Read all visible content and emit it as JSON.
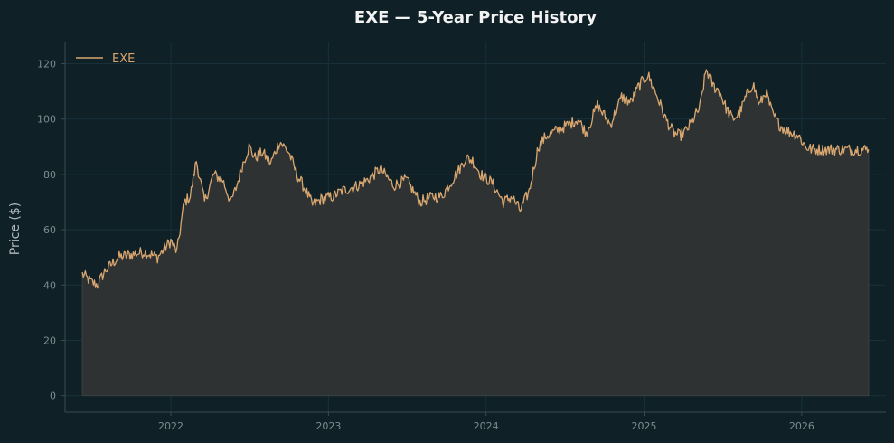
{
  "colors": {
    "background": "#0f2027",
    "plot_background": "#10222a",
    "line": "#d9a66f",
    "fill": "#2e3232",
    "axis": "#3a4a52",
    "grid": "#17303a",
    "title": "#f2f2f2",
    "tick_label": "#7f8c8d",
    "axis_label": "#b0b8bb",
    "legend_text": "#d9a66f"
  },
  "chart_data": {
    "type": "area",
    "title": "EXE — 5-Year Price History",
    "xlabel": "",
    "ylabel": "Price ($)",
    "xlim": [
      "2021-05-01",
      "2026-07-15"
    ],
    "ylim": [
      -6,
      128
    ],
    "x_ticks": [
      "2022",
      "2023",
      "2024",
      "2025",
      "2026"
    ],
    "y_ticks": [
      0,
      20,
      40,
      60,
      80,
      100,
      120
    ],
    "grid": true,
    "legend": "top-left",
    "series": [
      {
        "name": "EXE",
        "x": [
          "2021-06-10",
          "2021-07-01",
          "2021-07-15",
          "2021-08-01",
          "2021-09-01",
          "2021-10-01",
          "2021-11-01",
          "2021-12-01",
          "2022-01-01",
          "2022-01-15",
          "2022-02-01",
          "2022-02-15",
          "2022-03-01",
          "2022-03-20",
          "2022-04-10",
          "2022-05-01",
          "2022-05-20",
          "2022-06-01",
          "2022-06-15",
          "2022-07-01",
          "2022-07-15",
          "2022-08-01",
          "2022-08-20",
          "2022-09-10",
          "2022-10-01",
          "2022-10-20",
          "2022-11-10",
          "2022-11-25",
          "2022-12-15",
          "2023-01-10",
          "2023-02-01",
          "2023-02-20",
          "2023-03-10",
          "2023-04-01",
          "2023-05-01",
          "2023-06-01",
          "2023-07-01",
          "2023-08-01",
          "2023-09-01",
          "2023-09-20",
          "2023-10-15",
          "2023-11-01",
          "2023-11-15",
          "2023-12-01",
          "2023-12-20",
          "2024-01-15",
          "2024-02-10",
          "2024-03-01",
          "2024-03-20",
          "2024-04-10",
          "2024-05-01",
          "2024-05-20",
          "2024-06-15",
          "2024-07-10",
          "2024-08-01",
          "2024-08-20",
          "2024-09-15",
          "2024-10-15",
          "2024-11-10",
          "2024-12-01",
          "2024-12-20",
          "2025-01-10",
          "2025-02-01",
          "2025-02-20",
          "2025-03-10",
          "2025-03-25",
          "2025-04-10",
          "2025-04-25",
          "2025-05-10",
          "2025-05-25",
          "2025-06-10",
          "2025-06-25",
          "2025-07-10",
          "2025-07-25",
          "2025-08-10",
          "2025-08-25",
          "2025-09-10",
          "2025-09-25",
          "2025-10-10",
          "2025-10-25",
          "2025-11-10",
          "2025-11-25",
          "2025-12-10",
          "2025-12-25",
          "2026-01-10",
          "2026-01-25",
          "2026-02-10",
          "2026-02-25",
          "2026-03-10",
          "2026-03-25",
          "2026-04-10",
          "2026-04-25",
          "2026-05-10",
          "2026-05-25",
          "2026-06-05"
        ],
        "y": [
          44,
          41,
          40,
          45,
          50,
          51,
          52,
          50,
          56,
          52,
          70,
          72,
          85,
          70,
          80,
          78,
          70,
          75,
          83,
          90,
          86,
          88,
          84,
          92,
          88,
          80,
          74,
          69,
          71,
          72,
          74,
          75,
          76,
          78,
          82,
          76,
          78,
          70,
          72,
          72,
          78,
          82,
          86,
          85,
          80,
          77,
          70,
          72,
          67,
          74,
          90,
          94,
          96,
          98,
          100,
          95,
          105,
          98,
          108,
          106,
          112,
          116,
          108,
          100,
          95,
          94,
          96,
          100,
          104,
          118,
          112,
          110,
          104,
          100,
          102,
          108,
          113,
          105,
          110,
          102,
          98,
          96,
          95,
          94,
          90,
          89,
          89,
          89,
          89,
          89,
          89,
          89,
          89,
          89,
          89
        ]
      }
    ]
  }
}
